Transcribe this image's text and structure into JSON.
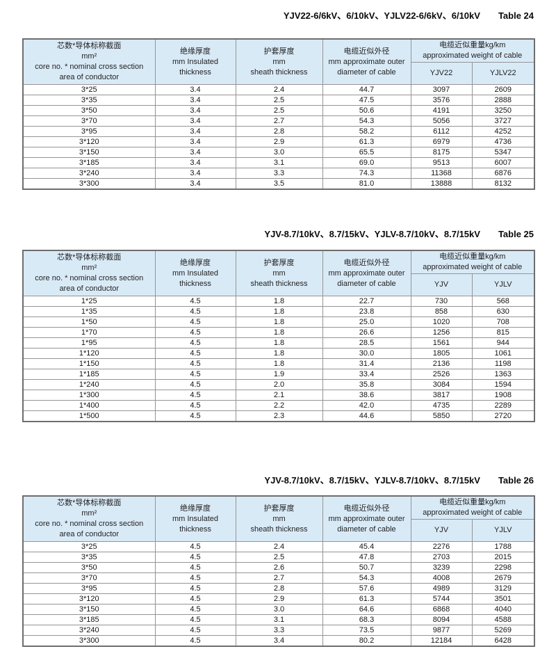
{
  "colors": {
    "header_bg": "#d9eaf7",
    "border_outer": "#6e6e6e",
    "border_inner": "#949494",
    "text": "#141414"
  },
  "tables": [
    {
      "title": "YJV22-6/6kV、6/10kV、YJLV22-6/6kV、6/10kV",
      "label": "Table 24",
      "headers": {
        "core": [
          "芯数*导体标称截面",
          "mm²",
          "core no. * nominal cross section",
          "area of conductor"
        ],
        "insulation": [
          "绝缘厚度",
          "mm Insulated",
          "thickness"
        ],
        "sheath": [
          "护套厚度",
          "mm",
          "sheath thickness"
        ],
        "diameter": [
          "电缆近似外径",
          "mm approximate outer",
          "diameter of cable"
        ],
        "weight_group": [
          "电缆近似重量kg/km",
          "approximated weight of cable"
        ],
        "weight_cols": [
          "YJV22",
          "YJLV22"
        ]
      },
      "rows": [
        [
          "3*25",
          "3.4",
          "2.4",
          "44.7",
          "3097",
          "2609"
        ],
        [
          "3*35",
          "3.4",
          "2.5",
          "47.5",
          "3576",
          "2888"
        ],
        [
          "3*50",
          "3.4",
          "2.5",
          "50.6",
          "4191",
          "3250"
        ],
        [
          "3*70",
          "3.4",
          "2.7",
          "54.3",
          "5056",
          "3727"
        ],
        [
          "3*95",
          "3.4",
          "2.8",
          "58.2",
          "6112",
          "4252"
        ],
        [
          "3*120",
          "3.4",
          "2.9",
          "61.3",
          "6979",
          "4736"
        ],
        [
          "3*150",
          "3.4",
          "3.0",
          "65.5",
          "8175",
          "5347"
        ],
        [
          "3*185",
          "3.4",
          "3.1",
          "69.0",
          "9513",
          "6007"
        ],
        [
          "3*240",
          "3.4",
          "3.3",
          "74.3",
          "11368",
          "6876"
        ],
        [
          "3*300",
          "3.4",
          "3.5",
          "81.0",
          "13888",
          "8132"
        ]
      ]
    },
    {
      "title": "YJV-8.7/10kV、8.7/15kV、YJLV-8.7/10kV、8.7/15kV",
      "label": "Table 25",
      "headers": {
        "core": [
          "芯数*导体标称截面",
          "mm²",
          "core no. * nominal cross section",
          "area of conductor"
        ],
        "insulation": [
          "绝缘厚度",
          "mm Insulated",
          "thickness"
        ],
        "sheath": [
          "护套厚度",
          "mm",
          "sheath thickness"
        ],
        "diameter": [
          "电缆近似外径",
          "mm approximate outer",
          "diameter of cable"
        ],
        "weight_group": [
          "电缆近似重量kg/km",
          "approximated weight of cable"
        ],
        "weight_cols": [
          "YJV",
          "YJLV"
        ]
      },
      "rows": [
        [
          "1*25",
          "4.5",
          "1.8",
          "22.7",
          "730",
          "568"
        ],
        [
          "1*35",
          "4.5",
          "1.8",
          "23.8",
          "858",
          "630"
        ],
        [
          "1*50",
          "4.5",
          "1.8",
          "25.0",
          "1020",
          "708"
        ],
        [
          "1*70",
          "4.5",
          "1.8",
          "26.6",
          "1256",
          "815"
        ],
        [
          "1*95",
          "4.5",
          "1.8",
          "28.5",
          "1561",
          "944"
        ],
        [
          "1*120",
          "4.5",
          "1.8",
          "30.0",
          "1805",
          "1061"
        ],
        [
          "1*150",
          "4.5",
          "1.8",
          "31.4",
          "2136",
          "1198"
        ],
        [
          "1*185",
          "4.5",
          "1.9",
          "33.4",
          "2526",
          "1363"
        ],
        [
          "1*240",
          "4.5",
          "2.0",
          "35.8",
          "3084",
          "1594"
        ],
        [
          "1*300",
          "4.5",
          "2.1",
          "38.6",
          "3817",
          "1908"
        ],
        [
          "1*400",
          "4.5",
          "2.2",
          "42.0",
          "4735",
          "2289"
        ],
        [
          "1*500",
          "4.5",
          "2.3",
          "44.6",
          "5850",
          "2720"
        ]
      ]
    },
    {
      "title": "YJV-8.7/10kV、8.7/15kV、YJLV-8.7/10kV、8.7/15kV",
      "label": "Table 26",
      "headers": {
        "core": [
          "芯数*导体标称截面",
          "mm²",
          "core no. * nominal cross section",
          "area of conductor"
        ],
        "insulation": [
          "绝缘厚度",
          "mm Insulated",
          "thickness"
        ],
        "sheath": [
          "护套厚度",
          "mm",
          "sheath thickness"
        ],
        "diameter": [
          "电缆近似外径",
          "mm approximate outer",
          "diameter of cable"
        ],
        "weight_group": [
          "电缆近似重量kg/km",
          "approximated weight of cable"
        ],
        "weight_cols": [
          "YJV",
          "YJLV"
        ]
      },
      "rows": [
        [
          "3*25",
          "4.5",
          "2.4",
          "45.4",
          "2276",
          "1788"
        ],
        [
          "3*35",
          "4.5",
          "2.5",
          "47.8",
          "2703",
          "2015"
        ],
        [
          "3*50",
          "4.5",
          "2.6",
          "50.7",
          "3239",
          "2298"
        ],
        [
          "3*70",
          "4.5",
          "2.7",
          "54.3",
          "4008",
          "2679"
        ],
        [
          "3*95",
          "4.5",
          "2.8",
          "57.6",
          "4989",
          "3129"
        ],
        [
          "3*120",
          "4.5",
          "2.9",
          "61.3",
          "5744",
          "3501"
        ],
        [
          "3*150",
          "4.5",
          "3.0",
          "64.6",
          "6868",
          "4040"
        ],
        [
          "3*185",
          "4.5",
          "3.1",
          "68.3",
          "8094",
          "4588"
        ],
        [
          "3*240",
          "4.5",
          "3.3",
          "73.5",
          "9877",
          "5269"
        ],
        [
          "3*300",
          "4.5",
          "3.4",
          "80.2",
          "12184",
          "6428"
        ]
      ]
    }
  ]
}
